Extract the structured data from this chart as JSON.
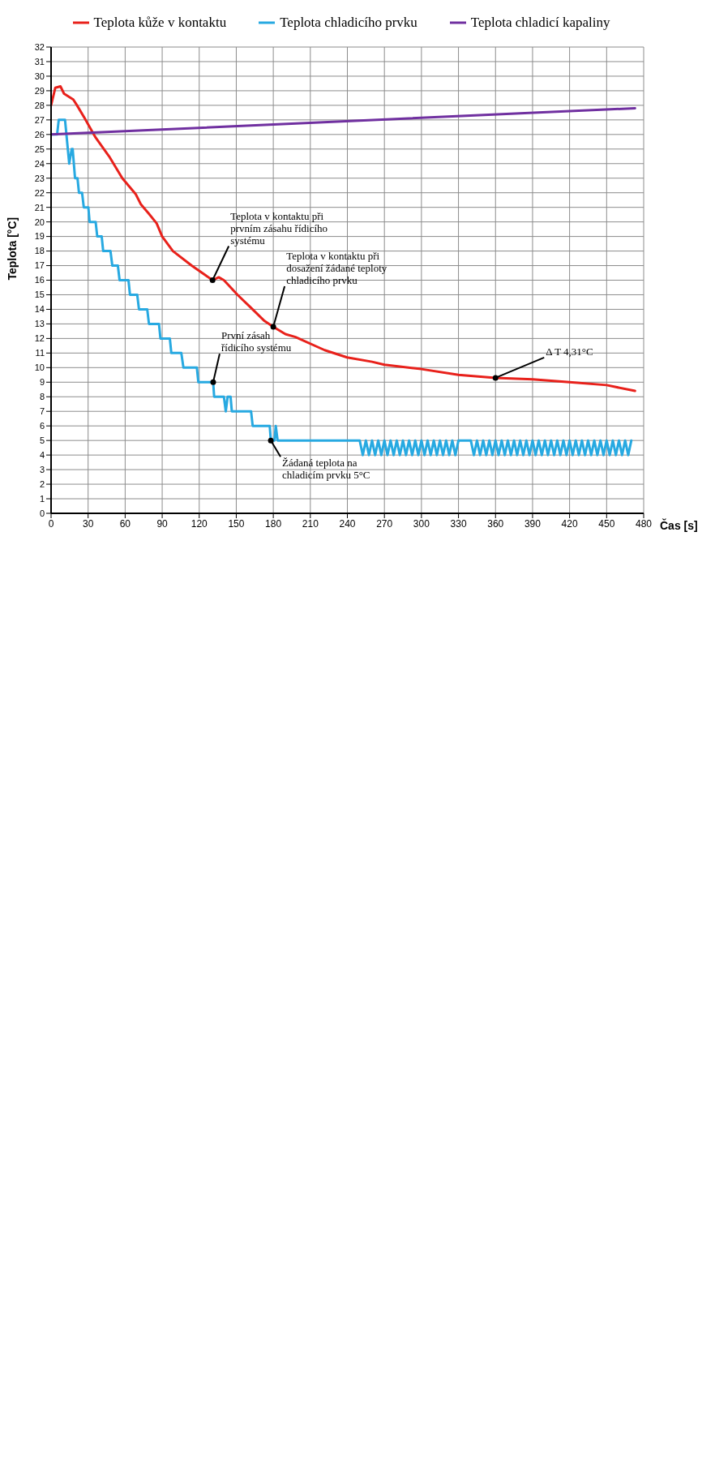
{
  "chart_data": {
    "type": "line",
    "xlabel": "Čas [s]",
    "ylabel": "Teplota [°C]",
    "xlim": [
      0,
      480
    ],
    "xticks": [
      0,
      30,
      60,
      90,
      120,
      150,
      180,
      210,
      240,
      270,
      300,
      330,
      360,
      390,
      420,
      450,
      480
    ],
    "ylim": [
      0,
      32
    ],
    "yticks": [
      0,
      1,
      2,
      3,
      4,
      5,
      6,
      7,
      8,
      9,
      10,
      11,
      12,
      13,
      14,
      15,
      16,
      17,
      18,
      19,
      20,
      21,
      22,
      23,
      24,
      25,
      26,
      27,
      28,
      29,
      30,
      31,
      32
    ],
    "grid": true,
    "legend": "top",
    "marker": "none",
    "line_style": "solid",
    "series": [
      {
        "name": "Teplota kůže v kontaktu",
        "color": "#e8211b",
        "x": [
          0,
          3.4,
          7.6,
          10.5,
          18,
          21,
          27.3,
          36,
          47,
          57.7,
          68.6,
          72.8,
          78.8,
          85.5,
          90,
          98.7,
          113.9,
          130.8,
          135.8,
          140,
          151,
          162,
          172.9,
          180,
          189.8,
          198,
          221.6,
          239.8,
          260,
          270,
          300,
          330,
          360,
          390,
          420,
          450,
          473
        ],
        "values": [
          28,
          29.2,
          29.3,
          28.8,
          28.4,
          28,
          27.1,
          25.8,
          24.5,
          23,
          21.9,
          21.2,
          20.6,
          19.9,
          19,
          18,
          17,
          16,
          16.2,
          16,
          15,
          14.1,
          13.2,
          12.8,
          12.3,
          12.1,
          11.2,
          10.7,
          10.4,
          10.2,
          9.9,
          9.5,
          9.3,
          9.2,
          9,
          8.8,
          8.4
        ]
      },
      {
        "name": "Teplota chladicího prvku",
        "color": "#27a9e1",
        "x": [
          0,
          4.9,
          6.2,
          11.3,
          14.7,
          16.7,
          17.5,
          19.4,
          21.4,
          22.6,
          25.1,
          26.5,
          30.2,
          31.2,
          36.1,
          37.4,
          41,
          42.2,
          48.1,
          49.6,
          54.1,
          55.5,
          62.7,
          63.9,
          69.8,
          71.2,
          77.9,
          79.3,
          87.4,
          88.6,
          96.2,
          97.4,
          105.5,
          107.2,
          118.1,
          119.3,
          131.3,
          132.1,
          140,
          141.5,
          143,
          145.4,
          146.4,
          162,
          163.3,
          177.1,
          178,
          181,
          182,
          183.5,
          250,
          252.5,
          255,
          257.5,
          260,
          262.5,
          265,
          267.5,
          270,
          272.5,
          275,
          277.5,
          280,
          282.5,
          285,
          287.5,
          290,
          292.5,
          295,
          297.5,
          300,
          302.5,
          305,
          307.5,
          310,
          312.5,
          315,
          317.5,
          320,
          322.5,
          325,
          327.5,
          330,
          340,
          342.5,
          345,
          347.5,
          350,
          352.5,
          355,
          357.5,
          360,
          362.5,
          365,
          367.5,
          370,
          372.5,
          375,
          377.5,
          380,
          382.5,
          385,
          387.5,
          390,
          392.5,
          395,
          397.5,
          400,
          402.5,
          405,
          407.5,
          410,
          412.5,
          415,
          417.5,
          420,
          422.5,
          425,
          427.5,
          430,
          432.5,
          435,
          437.5,
          440,
          442.5,
          445,
          447.5,
          450,
          452.5,
          455,
          457.5,
          460,
          462.5,
          465,
          467.5,
          470
        ],
        "values": [
          26,
          26,
          27,
          27,
          24,
          25,
          25,
          23,
          23,
          22,
          22,
          21,
          21,
          20,
          20,
          19,
          19,
          18,
          18,
          17,
          17,
          16,
          16,
          15,
          15,
          14,
          14,
          13,
          13,
          12,
          12,
          11,
          11,
          10,
          10,
          9,
          9,
          8,
          8,
          7,
          8,
          8,
          7,
          7,
          6,
          6,
          5,
          5,
          6,
          5,
          5,
          4,
          5,
          4,
          5,
          4,
          5,
          4,
          5,
          4,
          5,
          4,
          5,
          4,
          5,
          4,
          5,
          4,
          5,
          4,
          5,
          4,
          5,
          4,
          5,
          4,
          5,
          4,
          5,
          4,
          5,
          4,
          5,
          5,
          4,
          5,
          4,
          5,
          4,
          5,
          4,
          5,
          4,
          5,
          4,
          5,
          4,
          5,
          4,
          5,
          4,
          5,
          4,
          5,
          4,
          5,
          4,
          5,
          4,
          5,
          4,
          5,
          4,
          5,
          4,
          5,
          4,
          5,
          4,
          5,
          4,
          5,
          4,
          5,
          4,
          5,
          4,
          5,
          4,
          5,
          4,
          5,
          4,
          5,
          4,
          5
        ]
      },
      {
        "name": "Teplota chladicí kapaliny",
        "color": "#7030a0",
        "x": [
          0,
          473
        ],
        "values": [
          26,
          27.8
        ]
      }
    ],
    "annotations": [
      {
        "text": "Teplota v kontaktu při prvním zásahu řídicího systému",
        "x": 130.8,
        "y": 16
      },
      {
        "text": "Teplota v kontaktu při dosažení žádané teploty chladicího prvku",
        "x": 180,
        "y": 12.8
      },
      {
        "text": "První zásah řídicího systému",
        "x": 131.3,
        "y": 9
      },
      {
        "text": "Žádaná teplota na chladicím prvku 5°C",
        "x": 178,
        "y": 5
      },
      {
        "text": "Δ T 4,31°C",
        "x": 360,
        "y": 9.3
      }
    ]
  }
}
